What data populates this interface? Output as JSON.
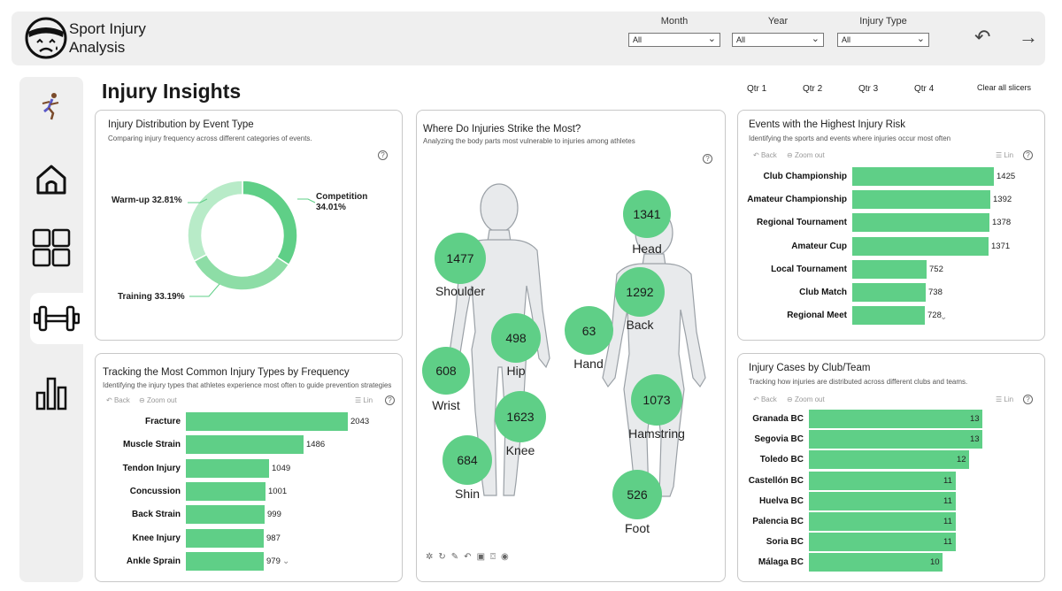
{
  "header": {
    "title_line1": "Sport Injury",
    "title_line2": "Analysis",
    "slicers": [
      {
        "label": "Month",
        "value": "All"
      },
      {
        "label": "Year",
        "value": "All"
      },
      {
        "label": "Injury Type",
        "value": "All"
      }
    ]
  },
  "page": {
    "title": "Injury Insights",
    "quarters": [
      "Qtr 1",
      "Qtr 2",
      "Qtr 3",
      "Qtr 4"
    ],
    "clear_slicers": "Clear all slicers"
  },
  "toolbar": {
    "back": "Back",
    "zoom_out": "Zoom out",
    "lin": "Lin"
  },
  "donut": {
    "title": "Injury Distribution by Event Type",
    "subtitle": "Comparing injury frequency across different categories of events.",
    "label_warmup": "Warm-up 32.81%",
    "label_competition_1": "Competition",
    "label_competition_2": "34.01%",
    "label_training": "Training 33.19%",
    "chart_data": {
      "type": "pie",
      "categories": [
        "Competition",
        "Training",
        "Warm-up"
      ],
      "values": [
        34.01,
        33.19,
        32.81
      ],
      "colors": [
        "#5fcf87",
        "#8ddda6",
        "#b8ebc8"
      ]
    }
  },
  "body_map": {
    "title": "Where Do Injuries Strike the Most?",
    "subtitle": "Analyzing the body parts most vulnerable to injuries among athletes",
    "points": [
      {
        "part": "Head",
        "value": "1341"
      },
      {
        "part": "Shoulder",
        "value": "1477"
      },
      {
        "part": "Back",
        "value": "1292"
      },
      {
        "part": "Hip",
        "value": "498"
      },
      {
        "part": "Hand",
        "value": "63"
      },
      {
        "part": "Wrist",
        "value": "608"
      },
      {
        "part": "Hamstring",
        "value": "1073"
      },
      {
        "part": "Knee",
        "value": "1623"
      },
      {
        "part": "Shin",
        "value": "684"
      },
      {
        "part": "Foot",
        "value": "526"
      }
    ]
  },
  "events": {
    "title": "Events with the Highest Injury Risk",
    "subtitle": "Identifying the sports and events where injuries occur most often",
    "chart_data": {
      "type": "bar",
      "categories": [
        "Club Championship",
        "Amateur Championship",
        "Regional Tournament",
        "Amateur Cup",
        "Local Tournament",
        "Club Match",
        "Regional Meet"
      ],
      "values": [
        1425,
        1392,
        1378,
        1371,
        752,
        738,
        728
      ],
      "xlim": [
        0,
        1425
      ]
    }
  },
  "injury_types": {
    "title": "Tracking the Most Common Injury Types by Frequency",
    "subtitle": "Identifying the injury types that athletes experience most often to guide prevention strategies",
    "chart_data": {
      "type": "bar",
      "categories": [
        "Fracture",
        "Muscle Strain",
        "Tendon Injury",
        "Concussion",
        "Back Strain",
        "Knee Injury",
        "Ankle Sprain"
      ],
      "values": [
        2043,
        1486,
        1049,
        1001,
        999,
        987,
        979
      ],
      "xlim": [
        0,
        2043
      ]
    }
  },
  "clubs": {
    "title": "Injury Cases by Club/Team",
    "subtitle": "Tracking how injuries are distributed across different clubs and teams.",
    "chart_data": {
      "type": "bar",
      "categories": [
        "Granada BC",
        "Segovia BC",
        "Toledo BC",
        "Castellón BC",
        "Huelva BC",
        "Palencia BC",
        "Soria BC",
        "Málaga BC"
      ],
      "values": [
        13,
        13,
        12,
        11,
        11,
        11,
        11,
        10
      ],
      "xlim": [
        0,
        13
      ]
    }
  },
  "colors": {
    "bar": "#5fcf87",
    "panel": "#efefef"
  }
}
